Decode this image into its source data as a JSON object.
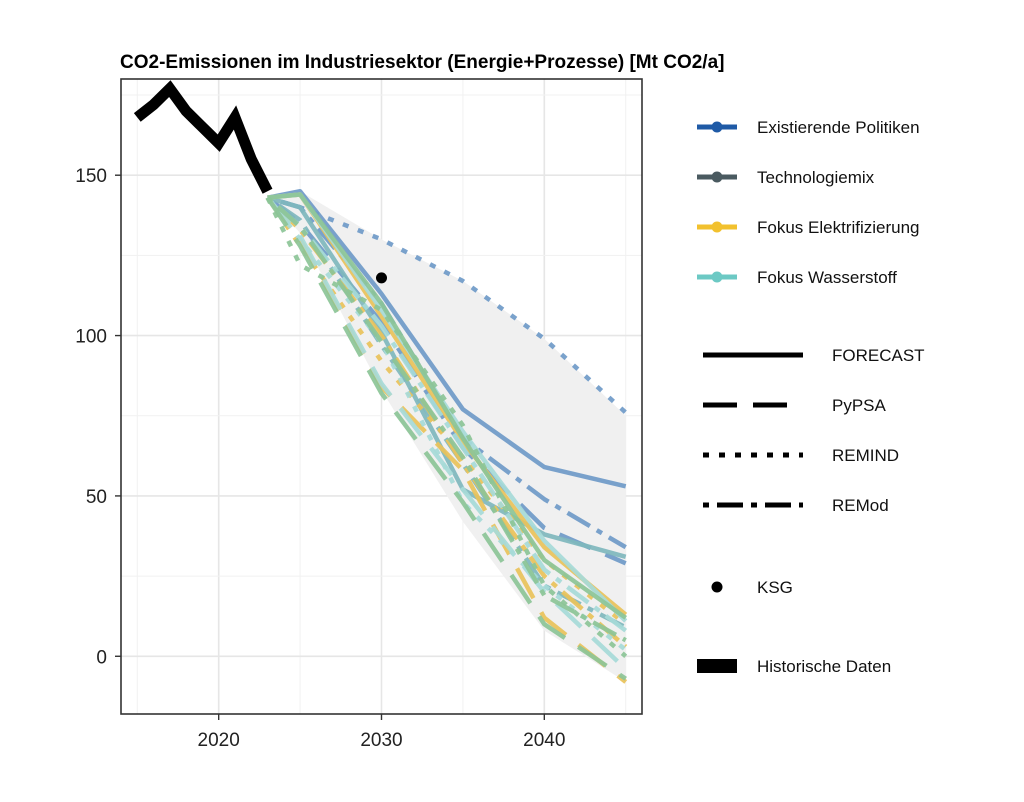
{
  "chart_data": {
    "type": "line",
    "title": "CO2-Emissionen im Industriesektor (Energie+Prozesse) [Mt CO2/a]",
    "xlabel": "",
    "ylabel": "",
    "xlim": [
      2014,
      2046
    ],
    "ylim": [
      -18,
      180
    ],
    "xticks": [
      2020,
      2030,
      2040
    ],
    "yticks": [
      0,
      50,
      100,
      150
    ],
    "grid": true,
    "legend_position": "right",
    "colors": {
      "Existierende Politiken": "#6f9ac8",
      "Technologiemix": "#7fb7bd",
      "Fokus Elektrifizierung": "#e9c25a",
      "Fokus Wasserstoff": "#a6dad8",
      "green": "#8cc497",
      "ribbon": "#f0f0f0"
    },
    "historical": {
      "name": "Historische Daten",
      "x": [
        2015,
        2016,
        2017,
        2018,
        2019,
        2020,
        2021,
        2022,
        2023
      ],
      "y": [
        168,
        172,
        177,
        170,
        165,
        160,
        168,
        155,
        145
      ]
    },
    "ksg": {
      "name": "KSG",
      "x": 2030,
      "y": 118
    },
    "ribbon": {
      "x": [
        2023,
        2025,
        2030,
        2035,
        2040,
        2045
      ],
      "upper": [
        143,
        145,
        130,
        117,
        99,
        75
      ],
      "lower": [
        143,
        132,
        83,
        42,
        8,
        -8
      ]
    },
    "series": [
      {
        "scenario": "Existierende Politiken",
        "model": "FORECAST",
        "x": [
          2023,
          2025,
          2030,
          2035,
          2040,
          2045
        ],
        "y": [
          143,
          145,
          113,
          77,
          59,
          53
        ]
      },
      {
        "scenario": "Existierende Politiken",
        "model": "PyPSA",
        "x": [
          2023,
          2025,
          2030,
          2035,
          2040,
          2045
        ],
        "y": [
          143,
          135,
          104,
          65,
          40,
          29
        ]
      },
      {
        "scenario": "Existierende Politiken",
        "model": "REMIND",
        "x": [
          2023,
          2025,
          2030,
          2035,
          2040,
          2045
        ],
        "y": [
          143,
          140,
          130,
          117,
          99,
          76
        ]
      },
      {
        "scenario": "Existierende Politiken",
        "model": "REMod",
        "x": [
          2023,
          2025,
          2030,
          2035,
          2040,
          2045
        ],
        "y": [
          143,
          140,
          110,
          68,
          49,
          34
        ]
      },
      {
        "scenario": "Technologiemix",
        "model": "FORECAST",
        "x": [
          2023,
          2025,
          2030,
          2035,
          2040,
          2045
        ],
        "y": [
          143,
          140,
          101,
          52,
          38,
          31
        ]
      },
      {
        "scenario": "Technologiemix",
        "model": "REMod",
        "x": [
          2023,
          2025,
          2030,
          2035,
          2040,
          2045
        ],
        "y": [
          143,
          136,
          97,
          60,
          22,
          9
        ]
      },
      {
        "scenario": "Fokus Elektrifizierung",
        "model": "FORECAST",
        "x": [
          2023,
          2025,
          2030,
          2035,
          2040,
          2045
        ],
        "y": [
          143,
          144,
          106,
          67,
          34,
          13
        ]
      },
      {
        "scenario": "Fokus Elektrifizierung",
        "model": "PyPSA",
        "x": [
          2023,
          2025,
          2030,
          2035,
          2040,
          2045
        ],
        "y": [
          143,
          130,
          84,
          58,
          12,
          -8
        ]
      },
      {
        "scenario": "Fokus Elektrifizierung",
        "model": "REMIND",
        "x": [
          2023,
          2025,
          2030,
          2035,
          2040,
          2045
        ],
        "y": [
          143,
          128,
          92,
          62,
          30,
          10
        ]
      },
      {
        "scenario": "Fokus Elektrifizierung",
        "model": "REMod",
        "x": [
          2023,
          2025,
          2030,
          2035,
          2040,
          2045
        ],
        "y": [
          143,
          133,
          100,
          60,
          25,
          3
        ]
      },
      {
        "scenario": "Fokus Wasserstoff",
        "model": "FORECAST",
        "x": [
          2023,
          2025,
          2030,
          2035,
          2040,
          2045
        ],
        "y": [
          143,
          144,
          108,
          70,
          36,
          11
        ]
      },
      {
        "scenario": "Fokus Wasserstoff",
        "model": "PyPSA",
        "x": [
          2023,
          2025,
          2030,
          2035,
          2040,
          2045
        ],
        "y": [
          143,
          131,
          85,
          52,
          20,
          -4
        ]
      },
      {
        "scenario": "Fokus Wasserstoff",
        "model": "REMIND",
        "x": [
          2023,
          2025,
          2030,
          2035,
          2040,
          2045
        ],
        "y": [
          143,
          130,
          98,
          48,
          22,
          2
        ]
      },
      {
        "scenario": "Fokus Wasserstoff",
        "model": "REMod",
        "x": [
          2023,
          2025,
          2030,
          2035,
          2040,
          2045
        ],
        "y": [
          143,
          134,
          103,
          65,
          27,
          8
        ]
      },
      {
        "scenario": "green",
        "model": "FORECAST",
        "x": [
          2023,
          2025,
          2030,
          2035,
          2040,
          2045
        ],
        "y": [
          143,
          144,
          110,
          68,
          30,
          12
        ]
      },
      {
        "scenario": "green",
        "model": "PyPSA",
        "x": [
          2023,
          2025,
          2030,
          2035,
          2040,
          2045
        ],
        "y": [
          143,
          128,
          82,
          48,
          10,
          -7
        ]
      },
      {
        "scenario": "green",
        "model": "REMIND",
        "x": [
          2023,
          2025,
          2030,
          2035,
          2040,
          2045
        ],
        "y": [
          143,
          122,
          108,
          72,
          22,
          0
        ]
      },
      {
        "scenario": "green",
        "model": "REMod",
        "x": [
          2023,
          2025,
          2030,
          2035,
          2040,
          2045
        ],
        "y": [
          143,
          134,
          98,
          62,
          19,
          5
        ]
      }
    ],
    "legend": {
      "scenarios": [
        {
          "name": "Existierende Politiken",
          "color": "#1f5aa6"
        },
        {
          "name": "Technologiemix",
          "color": "#4a5a60"
        },
        {
          "name": "Fokus Elektrifizierung",
          "color": "#f2c12e"
        },
        {
          "name": "Fokus Wasserstoff",
          "color": "#6cc9c4"
        }
      ],
      "models": [
        {
          "name": "FORECAST",
          "dash": "solid"
        },
        {
          "name": "PyPSA",
          "dash": "longdash"
        },
        {
          "name": "REMIND",
          "dash": "dotted"
        },
        {
          "name": "REMod",
          "dash": "dotdash"
        }
      ],
      "ksg_label": "KSG",
      "historical_label": "Historische Daten"
    }
  }
}
